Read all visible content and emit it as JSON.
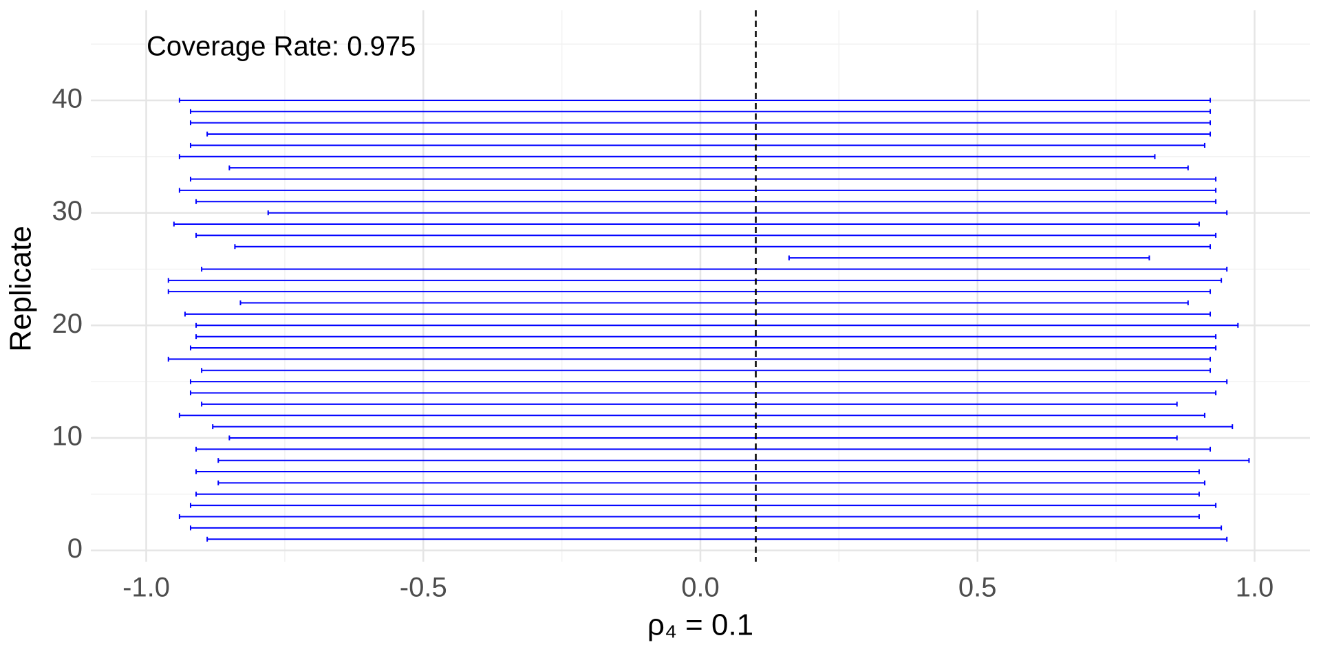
{
  "chart_data": {
    "type": "interval",
    "annotation": "Coverage Rate: 0.975",
    "xlabel": "ρ₄ = 0.1",
    "ylabel": "Replicate",
    "color": "#0000ff",
    "vline": 0.1,
    "y": [
      1,
      2,
      3,
      4,
      5,
      6,
      7,
      8,
      9,
      10,
      11,
      12,
      13,
      14,
      15,
      16,
      17,
      18,
      19,
      20,
      21,
      22,
      23,
      24,
      25,
      26,
      27,
      28,
      29,
      30,
      31,
      32,
      33,
      34,
      35,
      36,
      37,
      38,
      39,
      40
    ],
    "low": [
      -0.89,
      -0.92,
      -0.94,
      -0.92,
      -0.91,
      -0.87,
      -0.91,
      -0.87,
      -0.91,
      -0.85,
      -0.88,
      -0.94,
      -0.9,
      -0.92,
      -0.92,
      -0.9,
      -0.96,
      -0.92,
      -0.91,
      -0.91,
      -0.93,
      -0.83,
      -0.96,
      -0.96,
      -0.9,
      0.16,
      -0.84,
      -0.91,
      -0.95,
      -0.78,
      -0.91,
      -0.94,
      -0.92,
      -0.85,
      -0.94,
      -0.92,
      -0.89,
      -0.92,
      -0.92,
      -0.94
    ],
    "high": [
      0.95,
      0.94,
      0.9,
      0.93,
      0.9,
      0.91,
      0.9,
      0.99,
      0.92,
      0.86,
      0.96,
      0.91,
      0.86,
      0.93,
      0.95,
      0.92,
      0.92,
      0.93,
      0.93,
      0.97,
      0.92,
      0.88,
      0.92,
      0.94,
      0.95,
      0.81,
      0.92,
      0.93,
      0.9,
      0.95,
      0.93,
      0.93,
      0.93,
      0.88,
      0.82,
      0.91,
      0.92,
      0.92,
      0.92,
      0.92
    ],
    "xlim": [
      -1.1,
      1.1
    ],
    "ylim": [
      -1,
      48
    ],
    "xticks": [
      {
        "value": -1,
        "label": "-1.0"
      },
      {
        "value": -0.5,
        "label": "-0.5"
      },
      {
        "value": 0,
        "label": "0.0"
      },
      {
        "value": 0.5,
        "label": "0.5"
      },
      {
        "value": 1,
        "label": "1.0"
      }
    ],
    "yticks": [
      0,
      10,
      20,
      30,
      40
    ],
    "xminor": [
      -0.75,
      -0.25,
      0.25,
      0.75
    ],
    "yminor": [
      5,
      15,
      25,
      35,
      45
    ],
    "grid": true
  }
}
